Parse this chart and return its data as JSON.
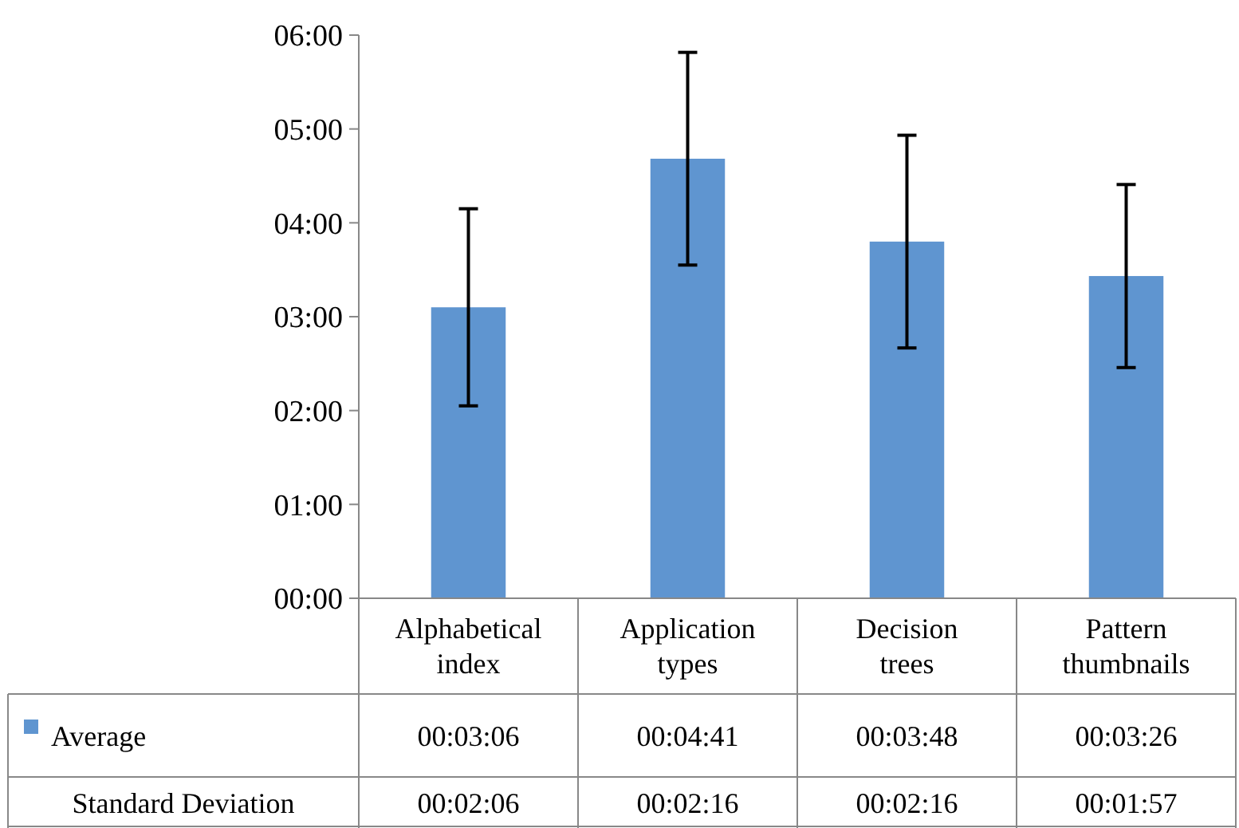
{
  "chart_data": {
    "type": "bar",
    "categories": [
      "Alphabetical index",
      "Application types",
      "Decision trees",
      "Pattern thumbnails"
    ],
    "series": [
      {
        "name": "Average",
        "color": "#5f95d0",
        "values": [
          3.1,
          4.683,
          3.8,
          3.433
        ],
        "errors": [
          1.05,
          1.133,
          1.133,
          0.975
        ],
        "value_labels": [
          "00:03:06",
          "00:04:41",
          "00:03:48",
          "00:03:26"
        ]
      }
    ],
    "ylim": [
      0,
      6
    ],
    "yticks": [
      {
        "value": 0,
        "label": "00:00"
      },
      {
        "value": 1,
        "label": "01:00"
      },
      {
        "value": 2,
        "label": "02:00"
      },
      {
        "value": 3,
        "label": "03:00"
      },
      {
        "value": 4,
        "label": "04:00"
      },
      {
        "value": 5,
        "label": "05:00"
      },
      {
        "value": 6,
        "label": "06:00"
      }
    ],
    "legend": "bottom",
    "grid": false,
    "annotations": [
      "Standard Deviation",
      "00:02:06",
      "00:02:16",
      "00:02:16",
      "00:01:57"
    ]
  }
}
